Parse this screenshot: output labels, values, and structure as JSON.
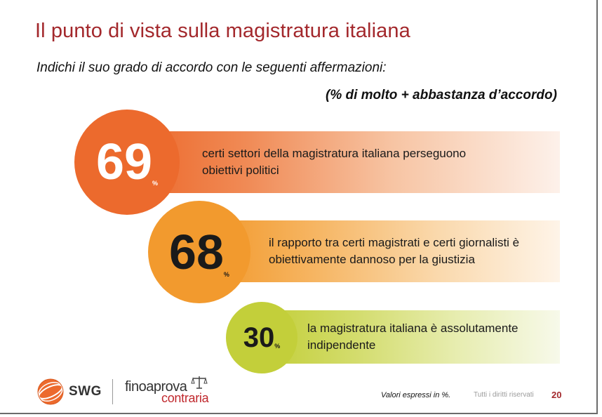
{
  "title": "Il punto di vista sulla magistratura italiana",
  "question": "Indichi il suo grado di accordo con le seguenti affermazioni:",
  "note": "(% di molto + abbastanza d’accordo)",
  "items": [
    {
      "value": "69",
      "unit": "%",
      "text": "certi settori della magistratura italiana perseguono obiettivi politici"
    },
    {
      "value": "68",
      "unit": "%",
      "text": "il rapporto tra certi magistrati e certi giornalisti è obiettivamente dannoso per la giustizia"
    },
    {
      "value": "30",
      "unit": "%",
      "text": "la magistratura italiana è assolutamente indipendente"
    }
  ],
  "colors": {
    "title": "#a3282c",
    "item1": "#ec6a2d",
    "item2": "#f29a2e",
    "item3": "#c3cf3a"
  },
  "footer": {
    "swg": "SWG",
    "brand_top": "finoaprova",
    "brand_bottom": "contraria",
    "note": "Valori espressi in %.",
    "rights": "Tutti i diritti riservati",
    "page": "20"
  }
}
